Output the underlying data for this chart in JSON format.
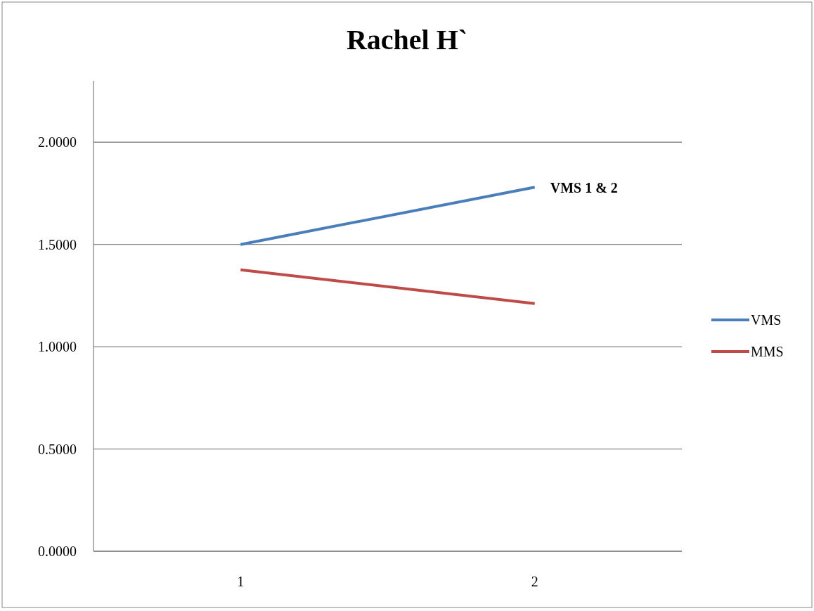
{
  "chart_data": {
    "type": "line",
    "title": "Rachel H`",
    "categories": [
      "1",
      "2"
    ],
    "series": [
      {
        "name": "VMS",
        "color": "#4a7ebb",
        "values": [
          1.5,
          1.78
        ]
      },
      {
        "name": "MMS",
        "color": "#be4b48",
        "values": [
          1.376,
          1.211
        ]
      }
    ],
    "ylim": [
      0,
      2.3
    ],
    "yticks": [
      {
        "value": 0,
        "label": "0.0000"
      },
      {
        "value": 0.5,
        "label": "0.5000"
      },
      {
        "value": 1,
        "label": "1.0000"
      },
      {
        "value": 1.5,
        "label": "1.5000"
      },
      {
        "value": 2,
        "label": "2.0000"
      }
    ],
    "grid": "y",
    "legend": "right",
    "marker": "none",
    "annotations": [
      {
        "text": "VMS 1 & 2",
        "x": "2",
        "y": 1.78
      }
    ]
  }
}
